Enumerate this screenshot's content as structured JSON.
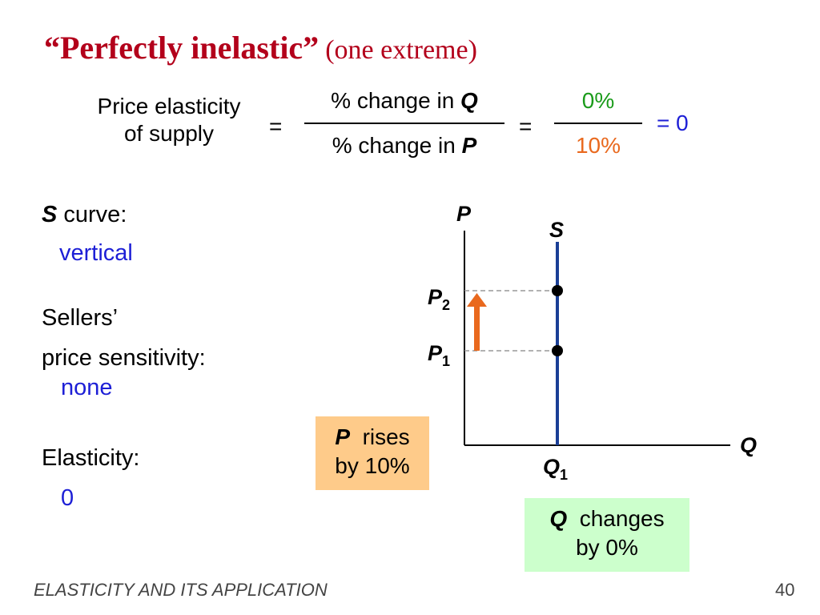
{
  "title": {
    "main": "“Perfectly inelastic”",
    "sub": "(one extreme)"
  },
  "formula": {
    "lhs_line1": "Price elasticity",
    "lhs_line2": "of supply",
    "eq1": "=",
    "num_text": "% change in ",
    "num_var": "Q",
    "den_text": "% change in ",
    "den_var": "P",
    "eq2": "=",
    "num_value": "0%",
    "den_value": "10%",
    "result": "= 0"
  },
  "left": {
    "s_var": "S",
    "s_curve_label": " curve:",
    "s_curve_value": "vertical",
    "sellers_line1": "Sellers’",
    "sellers_line2": "price sensitivity:",
    "sensitivity_value": "none",
    "elasticity_label": "Elasticity:",
    "elasticity_value": "0"
  },
  "graph": {
    "y_axis_label": "P",
    "x_axis_label": "Q",
    "curve_label": "S",
    "p2_base": "P",
    "p2_sub": "2",
    "p1_base": "P",
    "p1_sub": "1",
    "q1_base": "Q",
    "q1_sub": "1",
    "curve_color": "#1a3f96",
    "arrow_color": "#e9691e"
  },
  "callouts": {
    "p_rises_var": "P",
    "p_rises_text": "rises",
    "p_rises_line2": "by 10%",
    "p_rises_bg": "#fecb8a",
    "q_changes_var": "Q",
    "q_changes_text": "changes",
    "q_changes_line2": "by 0%",
    "q_changes_bg": "#ccffcc"
  },
  "footer": {
    "left": "ELASTICITY AND ITS APPLICATION",
    "page": "40"
  }
}
